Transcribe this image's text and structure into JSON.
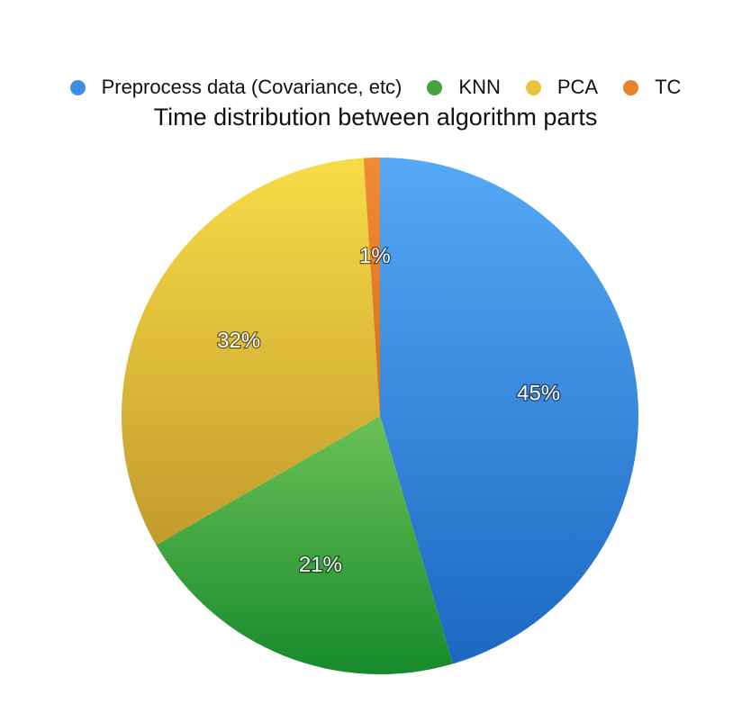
{
  "chart_data": {
    "type": "pie",
    "title": "Time distribution between algorithm parts",
    "categories": [
      "Preprocess data (Covariance, etc)",
      "KNN",
      "PCA",
      "TC"
    ],
    "values": [
      45,
      21,
      32,
      1
    ],
    "labels": [
      "45%",
      "21%",
      "32%",
      "1%"
    ],
    "colors": [
      "#3b8ee3",
      "#4cae45",
      "#e8c63a",
      "#e9802a"
    ],
    "legend_position": "top"
  }
}
